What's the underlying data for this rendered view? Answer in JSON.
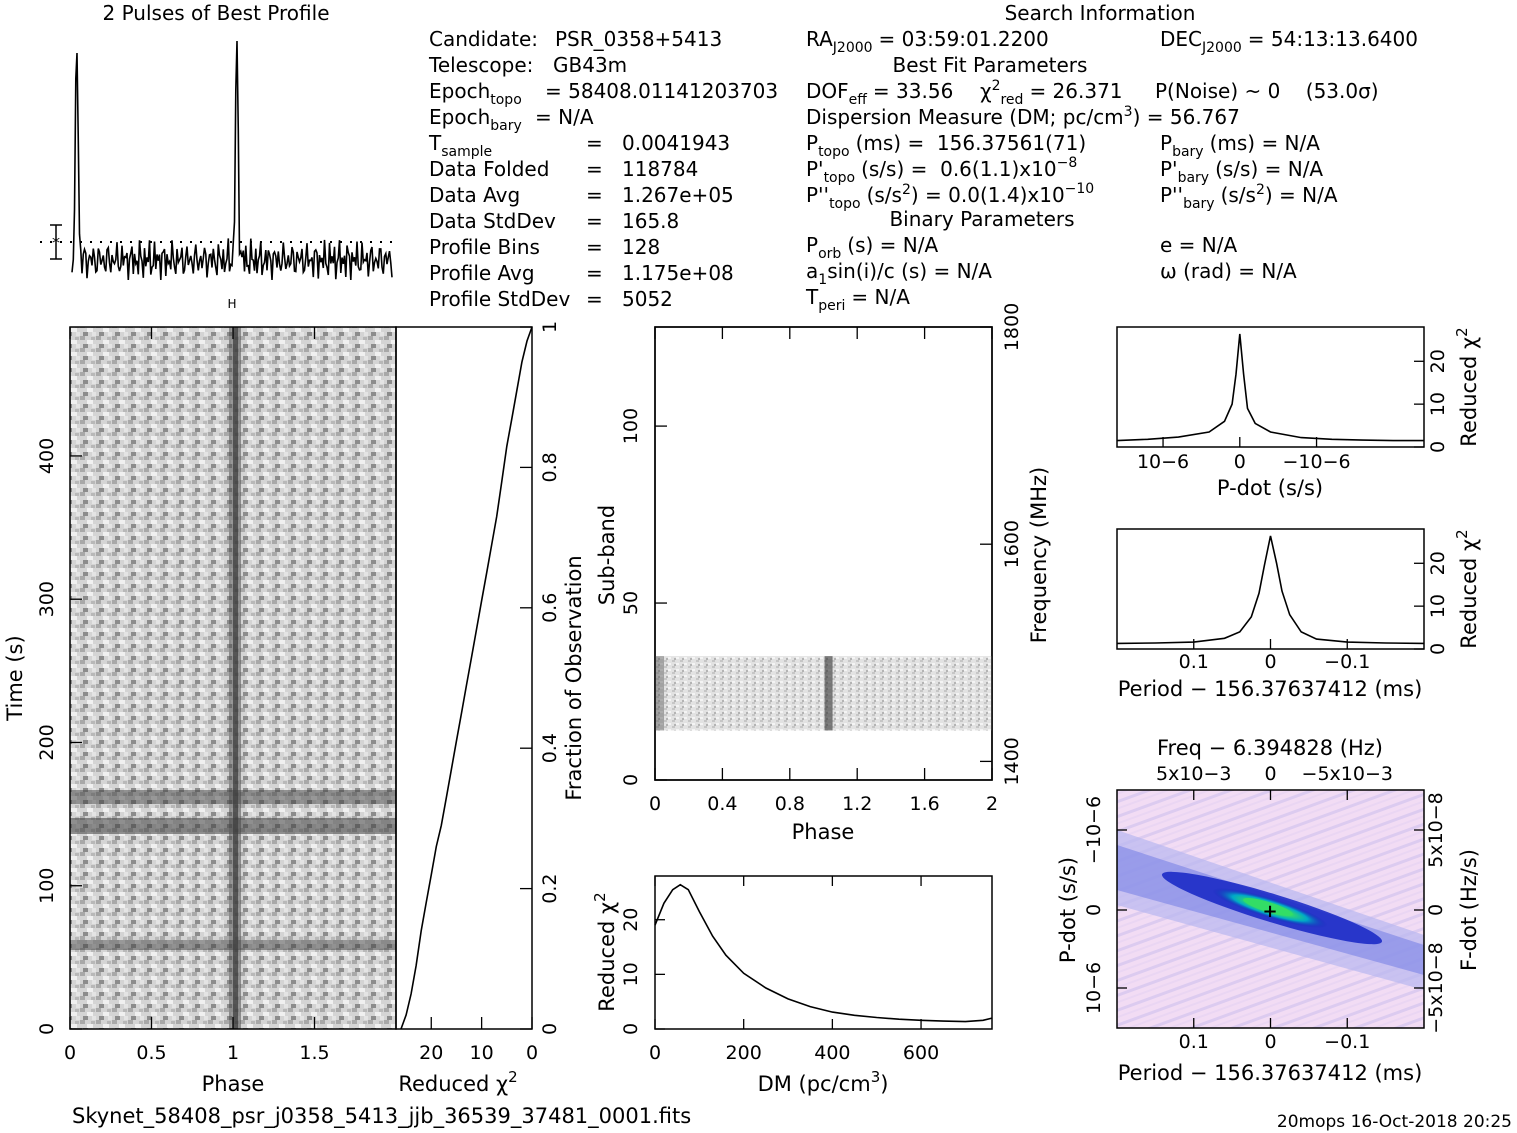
{
  "header": {
    "profile_title": "2 Pulses of Best Profile",
    "search_title": "Search Information",
    "best_fit_title": "Best Fit Parameters",
    "binary_title": "Binary Parameters"
  },
  "info_left": [
    {
      "label": "Candidate:",
      "value": "PSR_0358+5413"
    },
    {
      "label": "Telescope:",
      "value": "GB43m"
    },
    {
      "label": "Epoch",
      "sub": "topo",
      "value": "= 58408.01141203703"
    },
    {
      "label": "Epoch",
      "sub": "bary",
      "value": "= N/A"
    },
    {
      "label": "T",
      "sub": "sample",
      "value": "0.0041943"
    },
    {
      "label": "Data Folded",
      "value": "118784"
    },
    {
      "label": "Data Avg",
      "value": "1.267e+05"
    },
    {
      "label": "Data StdDev",
      "value": "165.8"
    },
    {
      "label": "Profile Bins",
      "value": "128"
    },
    {
      "label": "Profile Avg",
      "value": "1.175e+08"
    },
    {
      "label": "Profile StdDev",
      "value": "5052"
    }
  ],
  "info_right": {
    "ra": {
      "label": "RA",
      "sub": "J2000",
      "value": "= 03:59:01.2200"
    },
    "dec": {
      "label": "DEC",
      "sub": "J2000",
      "value": "= 54:13:13.6400"
    },
    "dof": {
      "label": "DOF",
      "sub": "eff",
      "value": "= 33.56"
    },
    "chi2": {
      "label": "χ",
      "sup": "2",
      "sub": "red",
      "value": "= 26.371"
    },
    "pnoise": "P(Noise) ~ 0    (53.0σ)",
    "dm": {
      "text": "Dispersion Measure (DM; pc/cm",
      "sup": "3",
      "tail": ") = 56.767"
    },
    "ptopo": {
      "label": "P",
      "sub": "topo",
      "value": "(ms) =  156.37561(71)"
    },
    "pbary": {
      "label": "P",
      "sub": "bary",
      "value": "(ms) = N/A"
    },
    "pdtopo": {
      "label": "P'",
      "sub": "topo",
      "value": "(s/s) =  0.6(1.1)x10",
      "exp": "−8"
    },
    "pdbary": {
      "label": "P'",
      "sub": "bary",
      "value": "(s/s) = N/A"
    },
    "pddtopo": {
      "label": "P''",
      "sub": "topo",
      "value": "(s/s",
      "sup": "2",
      "tail": ") = 0.0(1.4)x10",
      "exp": "−10"
    },
    "pddbary": {
      "label": "P''",
      "sub": "bary",
      "value": "(s/s",
      "sup": "2",
      "tail": ") = N/A"
    },
    "porb": {
      "label": "P",
      "sub": "orb",
      "value": "(s) = N/A"
    },
    "ecc": "e = N/A",
    "a1": {
      "label": "a",
      "sub": "1",
      "value": "sin(i)/c (s) = N/A"
    },
    "omega": "ω (rad) = N/A",
    "tperi": {
      "label": "T",
      "sub": "peri",
      "value": "= N/A"
    }
  },
  "footer": {
    "filename": "Skynet_58408_psr_j0358_5413_jjb_36539_37481_0001.fits",
    "stamp": "20mops 16-Oct-2018 20:25"
  },
  "colors": {
    "ink": "#000000",
    "background": "#ffffff",
    "peak_green": "#33dd66",
    "dark_blue": "#0a18b0",
    "light_lavender": "#f2dcf4"
  },
  "chart_data": [
    {
      "id": "profile",
      "type": "line",
      "title": "2 Pulses of Best Profile",
      "xlabel": "",
      "ylabel": "",
      "x_range": [
        0,
        2
      ],
      "pulse_phases": [
        0.03,
        1.03
      ],
      "peak_height_rel": 1.0,
      "baseline_rel": 0.0,
      "annotation": "error bar with mean marker (dotted line)"
    },
    {
      "id": "time_phase",
      "type": "heatmap",
      "xlabel": "Phase",
      "ylabel": "Time (s)",
      "x_ticks": [
        "0",
        "0.5",
        "1",
        "1.5"
      ],
      "y_ticks": [
        "0",
        "100",
        "200",
        "300",
        "400"
      ],
      "xlim": [
        0,
        2
      ],
      "ylim": [
        0,
        490
      ],
      "pulse_phase": 1.03,
      "colormap": "gray"
    },
    {
      "id": "time_chi2",
      "type": "line",
      "xlabel": "Reduced χ2",
      "ylabel": "Fraction of Observation",
      "x_ticks": [
        "20",
        "10",
        "0"
      ],
      "y_ticks": [
        "0",
        "0.2",
        "0.4",
        "0.6",
        "0.8",
        "1"
      ],
      "xlim": [
        27,
        0
      ],
      "ylim": [
        0,
        1
      ],
      "x": [
        0,
        1,
        2,
        3,
        4,
        5,
        6,
        7,
        8,
        9,
        10,
        11,
        12,
        13,
        14,
        15,
        16,
        17,
        18,
        19,
        20,
        21,
        22,
        23,
        24,
        25,
        26
      ],
      "y": [
        0.0,
        0.02,
        0.05,
        0.09,
        0.14,
        0.18,
        0.22,
        0.26,
        0.29,
        0.33,
        0.37,
        0.41,
        0.45,
        0.49,
        0.53,
        0.57,
        0.61,
        0.65,
        0.69,
        0.73,
        0.78,
        0.83,
        0.87,
        0.91,
        0.95,
        0.98,
        1.0
      ]
    },
    {
      "id": "subband",
      "type": "heatmap",
      "xlabel": "Phase",
      "ylabel": "Sub-band",
      "y2label": "Frequency (MHz)",
      "x_ticks": [
        "0",
        "0.4",
        "0.8",
        "1.2",
        "1.6",
        "2"
      ],
      "y_ticks": [
        "0",
        "50",
        "100"
      ],
      "y2_ticks": [
        "1400",
        "1600",
        "1800"
      ],
      "xlim": [
        0,
        2
      ],
      "ylim": [
        0,
        128
      ],
      "band_range": [
        14,
        35
      ],
      "pulse_phase": 1.03,
      "colormap": "gray"
    },
    {
      "id": "dm_curve",
      "type": "line",
      "xlabel": "DM (pc/cm3)",
      "ylabel": "Reduced χ2",
      "x_ticks": [
        "0",
        "200",
        "400",
        "600"
      ],
      "y_ticks": [
        "0",
        "10",
        "20"
      ],
      "xlim": [
        0,
        760
      ],
      "ylim": [
        0,
        28
      ],
      "x": [
        0,
        20,
        40,
        57,
        75,
        100,
        130,
        160,
        200,
        250,
        300,
        350,
        400,
        450,
        500,
        550,
        600,
        650,
        700,
        740,
        760
      ],
      "y": [
        19,
        23,
        25.5,
        26.4,
        25.5,
        21.5,
        17,
        13.5,
        10.2,
        7.5,
        5.5,
        4.1,
        3.1,
        2.5,
        2.1,
        1.8,
        1.6,
        1.45,
        1.35,
        1.6,
        2.0
      ]
    },
    {
      "id": "pdot_curve",
      "type": "line",
      "xlabel": "P-dot (s/s)",
      "ylabel": "Reduced χ2",
      "x_ticks": [
        "10−6",
        "0",
        "−10−6"
      ],
      "y_ticks": [
        "0",
        "10",
        "20"
      ],
      "xlim": [
        1.6e-06,
        -2.4e-06
      ],
      "ylim": [
        0,
        28
      ],
      "x": [
        1.6e-06,
        1.2e-06,
        8e-07,
        4e-07,
        2e-07,
        1e-07,
        5e-08,
        0,
        -5e-08,
        -1e-07,
        -2e-07,
        -4e-07,
        -8e-07,
        -1.2e-06,
        -1.6e-06,
        -2e-06,
        -2.4e-06
      ],
      "y": [
        1.5,
        1.8,
        2.3,
        3.5,
        6.0,
        10.0,
        17.0,
        26.4,
        17.0,
        9.0,
        5.5,
        3.5,
        2.2,
        1.8,
        1.6,
        1.5,
        1.5
      ]
    },
    {
      "id": "period_curve",
      "type": "line",
      "xlabel": "Period − 156.37637412 (ms)",
      "ylabel": "Reduced χ2",
      "x_ticks": [
        "0.1",
        "0",
        "−0.1"
      ],
      "y_ticks": [
        "0",
        "10",
        "20"
      ],
      "xlim": [
        0.2,
        -0.2
      ],
      "ylim": [
        0,
        28
      ],
      "x": [
        0.2,
        0.15,
        0.1,
        0.06,
        0.04,
        0.025,
        0.015,
        0.008,
        0,
        -0.008,
        -0.015,
        -0.025,
        -0.04,
        -0.06,
        -0.1,
        -0.15,
        -0.2
      ],
      "y": [
        1.3,
        1.4,
        1.6,
        2.5,
        4.0,
        7.5,
        13.0,
        19.5,
        26.4,
        20.0,
        13.5,
        8.0,
        4.0,
        2.3,
        1.6,
        1.4,
        1.3
      ]
    },
    {
      "id": "p_pdot_plane",
      "type": "heatmap",
      "title": "Freq − 6.394828 (Hz)",
      "xlabel": "Period − 156.37637412 (ms)",
      "ylabel": "P-dot (s/s)",
      "x2label": "Freq − 6.394828 (Hz)",
      "y2label": "F-dot (Hz/s)",
      "x_ticks": [
        "0.1",
        "0",
        "−0.1"
      ],
      "x2_ticks": [
        "−5x10−3",
        "0",
        "5x10−3"
      ],
      "y_ticks": [
        "−10−6",
        "0",
        "10−6"
      ],
      "y2_ticks": [
        "5x10−8",
        "0",
        "−5x10−8"
      ],
      "colormap": "pink-blue-green",
      "best_point": [
        0,
        0
      ]
    }
  ]
}
